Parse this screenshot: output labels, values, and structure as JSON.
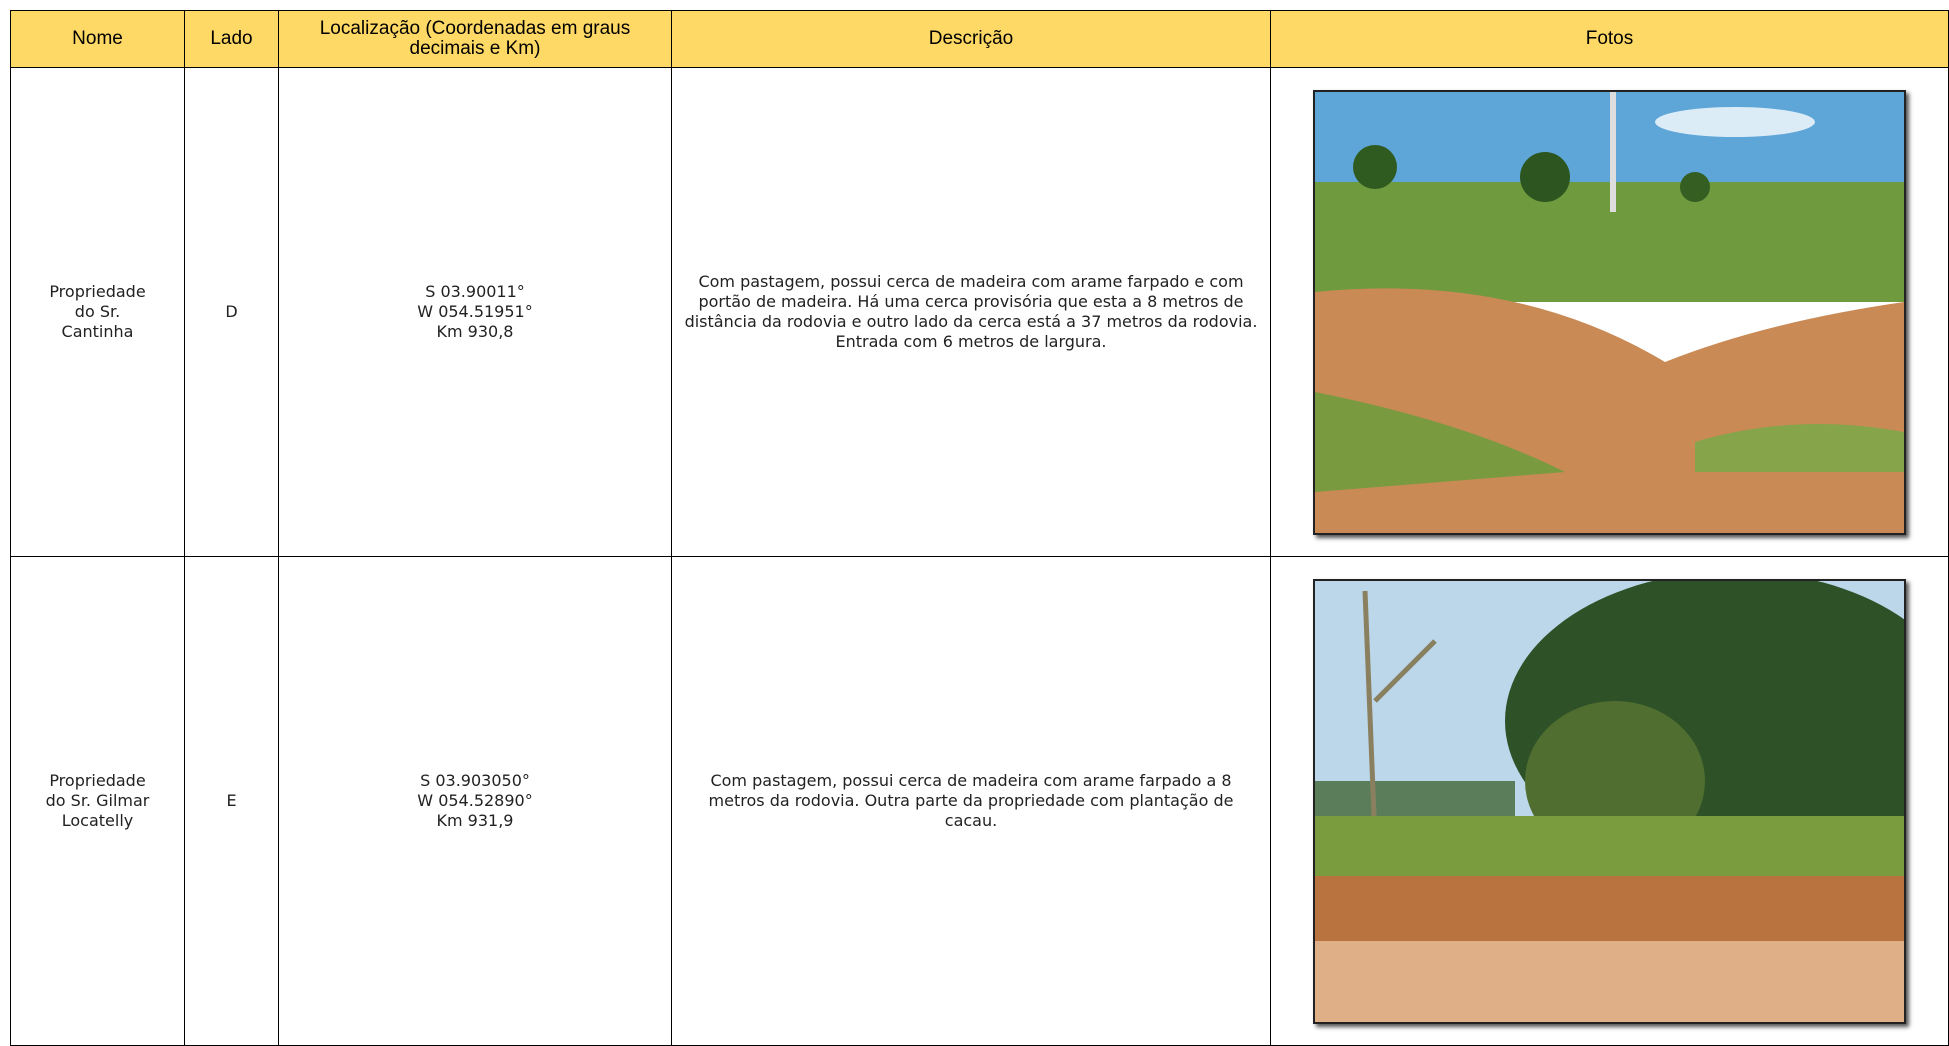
{
  "table": {
    "header": [
      "Nome",
      "Lado",
      "Localização (Coordenadas em graus decimais e Km)",
      "Descrição",
      "Fotos"
    ],
    "rows": [
      {
        "nome": [
          "Propriedade",
          "do Sr.",
          "Cantinha"
        ],
        "lado": "D",
        "localizacao": [
          "S 03.90011°",
          "W 054.51951°",
          "Km 930,8"
        ],
        "descricao": "Com pastagem, possui cerca de madeira com arame farpado e com portão de madeira. Há uma cerca provisória que esta a 8 metros de distância da rodovia e outro lado da cerca está a 37 metros da rodovia. Entrada com 6 metros de largura."
      },
      {
        "nome": [
          "Propriedade",
          "do Sr. Gilmar",
          "Locatelly"
        ],
        "lado": "E",
        "localizacao": [
          "S 03.903050°",
          "W 054.52890°",
          "Km 931,9"
        ],
        "descricao": "Com pastagem, possui cerca de madeira com arame farpado a 8 metros da rodovia. Outra parte da propriedade com plantação de cacau."
      }
    ]
  }
}
